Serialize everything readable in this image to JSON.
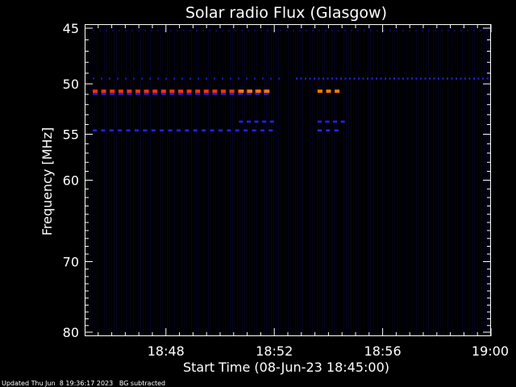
{
  "chart_data": {
    "type": "heatmap",
    "title": "Solar radio Flux (Glasgow)",
    "xlabel": "Start Time (08-Jun-23 18:45:00)",
    "ylabel": "Frequency [MHz]",
    "footer": "Updated Thu Jun  8 19:36:17 2023   BG subtracted",
    "x_range_minutes": [
      0,
      15
    ],
    "x_ticks": [
      {
        "label": "18:48",
        "minutes": 3
      },
      {
        "label": "18:52",
        "minutes": 7
      },
      {
        "label": "18:56",
        "minutes": 11
      },
      {
        "label": "19:00",
        "minutes": 15
      }
    ],
    "y_scale": "log",
    "y_range": [
      45,
      80
    ],
    "y_ticks": [
      45,
      50,
      55,
      60,
      70,
      80
    ],
    "y_minor_ticks": [
      46,
      47,
      48,
      49,
      51,
      52,
      53,
      54,
      56,
      57,
      58,
      59,
      61,
      62,
      63,
      64,
      65,
      66,
      67,
      68,
      69,
      71,
      72,
      73,
      74,
      75,
      76,
      77,
      78,
      79
    ],
    "background_color": "#000000",
    "features": [
      {
        "freq_mhz": 50.7,
        "t_start": 0,
        "t_end": 7,
        "intensity": "high",
        "color": "#ff3300",
        "dash": 6,
        "gap": 4.6
      },
      {
        "freq_mhz": 50.7,
        "t_start": 5.4,
        "t_end": 7,
        "intensity": "high",
        "color": "#ff7a00",
        "dash": 6,
        "gap": 4.6
      },
      {
        "freq_mhz": 50.7,
        "t_start": 8.3,
        "t_end": 9.6,
        "intensity": "high",
        "color": "#ff7a00",
        "dash": 6,
        "gap": 4.6
      },
      {
        "freq_mhz": 50.7,
        "t_start": 0,
        "t_end": 7,
        "intensity": "low",
        "color": "#2222ff",
        "dash": 6,
        "gap": 4.6,
        "offset_mhz": 0.25
      },
      {
        "freq_mhz": 54.6,
        "t_start": 0,
        "t_end": 7.2,
        "intensity": "medium",
        "color": "#2222ff",
        "dash": 5,
        "gap": 5.4
      },
      {
        "freq_mhz": 54.6,
        "t_start": 8.3,
        "t_end": 9.6,
        "intensity": "medium",
        "color": "#2a2aff",
        "dash": 5,
        "gap": 5.4
      },
      {
        "freq_mhz": 53.7,
        "t_start": 5.4,
        "t_end": 7.2,
        "intensity": "medium",
        "color": "#2222ff",
        "dash": 5,
        "gap": 4.6
      },
      {
        "freq_mhz": 53.7,
        "t_start": 8.3,
        "t_end": 9.6,
        "intensity": "medium",
        "color": "#2222ff",
        "dash": 5,
        "gap": 4.6
      },
      {
        "freq_mhz": 49.5,
        "t_start": 0,
        "t_end": 7.2,
        "intensity": "low",
        "color": "#1a1aa8",
        "dash": 2,
        "gap": 8
      },
      {
        "freq_mhz": 49.5,
        "t_start": 7.5,
        "t_end": 15,
        "intensity": "low",
        "color": "#2222cc",
        "dash": 2,
        "gap": 3.5
      },
      {
        "freq_mhz": 45.2,
        "t_start": 0,
        "t_end": 15,
        "intensity": "very-low",
        "color": "#0d0d55",
        "dash": 2,
        "gap": 6
      }
    ]
  }
}
